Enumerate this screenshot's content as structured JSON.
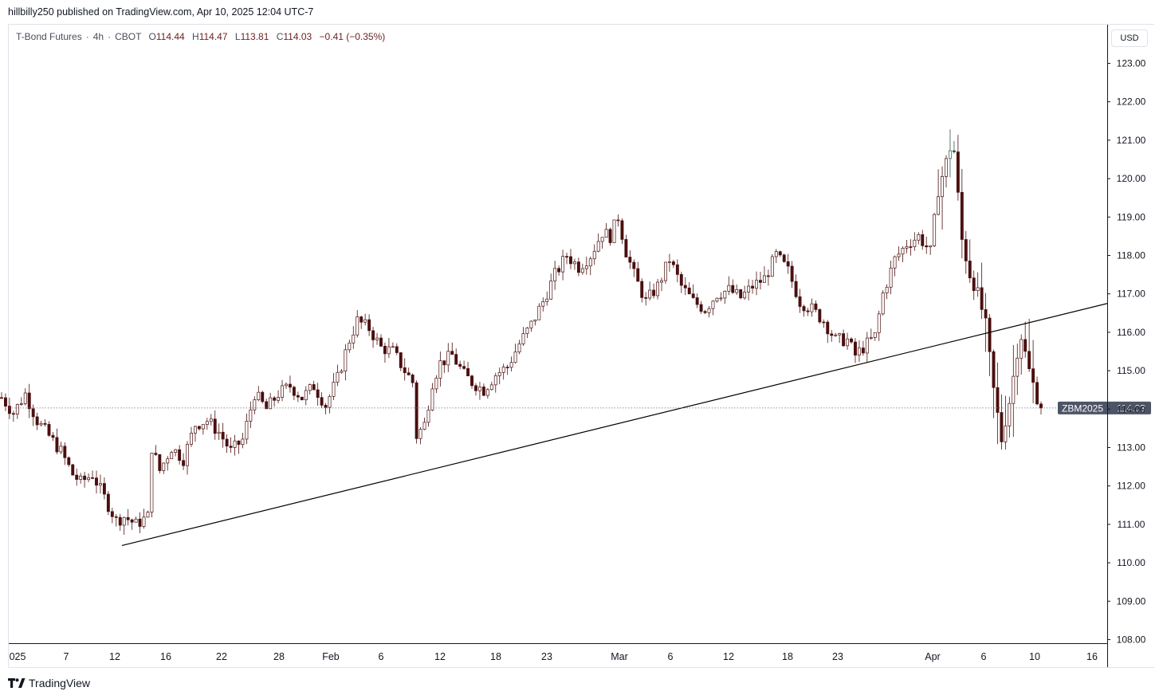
{
  "publish_line": "hillbilly250 published on TradingView.com, Apr 10, 2025 12:04 UTC-7",
  "legend": {
    "symbol": "T-Bond Futures",
    "interval": "4h",
    "exchange": "CBOT",
    "open_label": "O",
    "open": "114.44",
    "high_label": "H",
    "high": "114.47",
    "low_label": "L",
    "low": "113.81",
    "close_label": "C",
    "close": "114.03",
    "change": "−0.41 (−0.35%)"
  },
  "currency": "USD",
  "brand": "TradingView",
  "colors": {
    "candle": "#4a0f0f",
    "line": "#000000",
    "price_tag": "#4d5466",
    "grid_dots": "#6d7280",
    "last_candle_highlight": "#2e5a4a"
  },
  "chart_data": {
    "type": "candlestick",
    "title": "T-Bond Futures · 4h · CBOT",
    "last_price_label": {
      "symbol": "ZBM2025",
      "price": "114.03"
    },
    "x_axis": {
      "ticks": [
        "025",
        "7",
        "12",
        "16",
        "22",
        "28",
        "Feb",
        "6",
        "12",
        "18",
        "23",
        "Mar",
        "6",
        "12",
        "18",
        "23",
        "Apr",
        "6",
        "10",
        "16"
      ]
    },
    "y_axis": {
      "ticks": [
        "123.00",
        "122.00",
        "121.00",
        "120.00",
        "119.00",
        "118.00",
        "117.00",
        "116.00",
        "115.00",
        "114.00",
        "113.00",
        "112.00",
        "111.00",
        "110.00",
        "109.00",
        "108.00"
      ],
      "range": [
        107.85,
        124.0
      ]
    },
    "price_path": [
      [
        0,
        114.3
      ],
      [
        3,
        113.9
      ],
      [
        6,
        114.4
      ],
      [
        9,
        113.7
      ],
      [
        12,
        113.3
      ],
      [
        15,
        112.9
      ],
      [
        18,
        112.3
      ],
      [
        20,
        112.1
      ],
      [
        23,
        112.3
      ],
      [
        26,
        111.7
      ],
      [
        29,
        111.1
      ],
      [
        31,
        111.2
      ],
      [
        34,
        111.0
      ],
      [
        37,
        111.2
      ],
      [
        38,
        113.0
      ],
      [
        40,
        112.4
      ],
      [
        43,
        113.0
      ],
      [
        46,
        112.7
      ],
      [
        49,
        113.6
      ],
      [
        52,
        113.7
      ],
      [
        55,
        113.4
      ],
      [
        58,
        112.9
      ],
      [
        61,
        113.2
      ],
      [
        64,
        114.4
      ],
      [
        67,
        114.0
      ],
      [
        70,
        114.4
      ],
      [
        73,
        114.6
      ],
      [
        76,
        114.3
      ],
      [
        79,
        114.6
      ],
      [
        82,
        114.1
      ],
      [
        85,
        114.8
      ],
      [
        88,
        115.8
      ],
      [
        90,
        116.3
      ],
      [
        93,
        116.1
      ],
      [
        96,
        115.6
      ],
      [
        99,
        115.5
      ],
      [
        102,
        115.0
      ],
      [
        104,
        114.7
      ],
      [
        105,
        113.3
      ],
      [
        107,
        113.6
      ],
      [
        109,
        114.7
      ],
      [
        111,
        115.2
      ],
      [
        114,
        115.4
      ],
      [
        117,
        114.9
      ],
      [
        119,
        114.7
      ],
      [
        122,
        114.5
      ],
      [
        125,
        114.9
      ],
      [
        128,
        115.1
      ],
      [
        131,
        115.7
      ],
      [
        134,
        116.2
      ],
      [
        137,
        116.8
      ],
      [
        140,
        117.5
      ],
      [
        143,
        118.0
      ],
      [
        146,
        117.7
      ],
      [
        149,
        118.0
      ],
      [
        152,
        118.6
      ],
      [
        154,
        118.5
      ],
      [
        156,
        119.0
      ],
      [
        158,
        118.1
      ],
      [
        160,
        117.5
      ],
      [
        163,
        116.8
      ],
      [
        166,
        117.2
      ],
      [
        169,
        117.9
      ],
      [
        172,
        117.2
      ],
      [
        175,
        116.8
      ],
      [
        178,
        116.6
      ],
      [
        181,
        117.0
      ],
      [
        184,
        117.1
      ],
      [
        187,
        116.9
      ],
      [
        190,
        117.2
      ],
      [
        193,
        117.4
      ],
      [
        196,
        118.0
      ],
      [
        199,
        117.6
      ],
      [
        202,
        116.8
      ],
      [
        205,
        116.6
      ],
      [
        208,
        116.3
      ],
      [
        211,
        115.8
      ],
      [
        214,
        115.8
      ],
      [
        216,
        115.4
      ],
      [
        218,
        115.6
      ],
      [
        221,
        115.9
      ],
      [
        223,
        117.0
      ],
      [
        226,
        117.9
      ],
      [
        229,
        118.3
      ],
      [
        232,
        118.5
      ],
      [
        235,
        118.1
      ],
      [
        237,
        119.7
      ],
      [
        240,
        120.8
      ],
      [
        241,
        120.7
      ],
      [
        243,
        118.4
      ],
      [
        245,
        117.5
      ],
      [
        247,
        117.0
      ],
      [
        249,
        116.2
      ],
      [
        251,
        114.5
      ],
      [
        253,
        113.2
      ],
      [
        255,
        114.2
      ],
      [
        257,
        115.5
      ],
      [
        258,
        115.9
      ],
      [
        260,
        115.0
      ],
      [
        262,
        114.3
      ],
      [
        263,
        114.03
      ]
    ],
    "bars": 264,
    "candle_range": [
      2,
      1306
    ],
    "trendline": {
      "from": [
        110.45,
        153
      ],
      "to": [
        116.75,
        1389
      ]
    }
  }
}
